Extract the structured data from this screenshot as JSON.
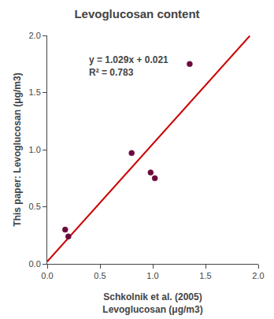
{
  "chart_data": {
    "type": "scatter",
    "title": "Levoglucosan content",
    "xlabel": "Schkolnik et al. (2005)\nLevoglucosan (μg/m3)",
    "ylabel": "This paper: Levoglucosan (μg/m3)",
    "series": [
      {
        "type": "line",
        "color": "#cc0000",
        "x": [
          0.0,
          1.92
        ],
        "values": [
          0.021,
          1.99668
        ]
      },
      {
        "type": "scatter",
        "color": "#6b0a3c",
        "x": [
          0.17,
          0.2,
          0.8,
          0.98,
          1.02,
          1.35
        ],
        "values": [
          0.3,
          0.24,
          0.97,
          0.8,
          0.75,
          1.75
        ]
      }
    ],
    "annotations": [
      {
        "text": "y = 1.029x + 0.021\nR² = 0.783",
        "x": 0.38,
        "y": 1.85
      }
    ],
    "xlim": [
      0.0,
      2.0
    ],
    "ylim": [
      0.0,
      2.0
    ],
    "xticks": [
      {
        "value": 0.0,
        "label": "0.0"
      },
      0.5,
      {
        "value": 1.0,
        "label": "1.0"
      },
      1.5,
      {
        "value": 2.0,
        "label": "2.0"
      }
    ],
    "yticks": [
      {
        "value": 0.0,
        "label": "0.0"
      },
      0.5,
      {
        "value": 1.0,
        "label": "1.0"
      },
      1.5,
      {
        "value": 2.0,
        "label": "2.0"
      }
    ],
    "grid": false
  }
}
